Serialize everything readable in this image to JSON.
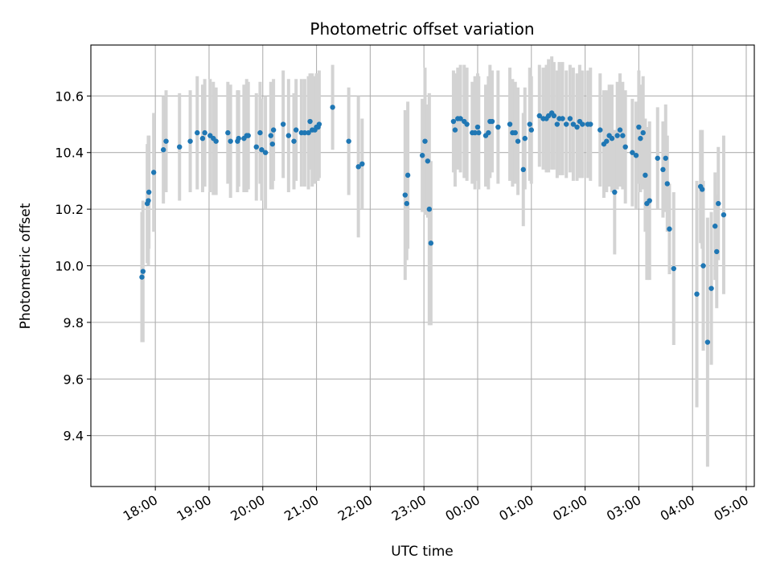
{
  "chart_data": {
    "type": "scatter",
    "title": "Photometric offset variation",
    "xlabel": "UTC time",
    "ylabel": "Photometric offset",
    "xlim_hours": [
      16.8,
      29.15
    ],
    "ylim": [
      9.22,
      10.78
    ],
    "grid": true,
    "x_tick_labels": [
      "18:00",
      "19:00",
      "20:00",
      "21:00",
      "22:00",
      "23:00",
      "00:00",
      "01:00",
      "02:00",
      "03:00",
      "04:00",
      "05:00"
    ],
    "y_tick_labels": [
      "9.4",
      "9.6",
      "9.8",
      "10.0",
      "10.2",
      "10.4",
      "10.6"
    ],
    "colors": {
      "point": "#1f77b4",
      "errorbar": "#d3d3d3",
      "grid": "#b0b0b0"
    },
    "series": [
      {
        "name": "offset",
        "points": [
          [
            17.75,
            9.96,
            0.23
          ],
          [
            17.77,
            9.98,
            0.25
          ],
          [
            17.85,
            10.22,
            0.21
          ],
          [
            17.87,
            10.23,
            0.23
          ],
          [
            17.88,
            10.26,
            0.2
          ],
          [
            17.97,
            10.33,
            0.21
          ],
          [
            18.15,
            10.41,
            0.19
          ],
          [
            18.2,
            10.44,
            0.18
          ],
          [
            18.45,
            10.42,
            0.19
          ],
          [
            18.65,
            10.44,
            0.18
          ],
          [
            18.78,
            10.47,
            0.2
          ],
          [
            18.88,
            10.45,
            0.19
          ],
          [
            18.92,
            10.47,
            0.19
          ],
          [
            19.02,
            10.46,
            0.2
          ],
          [
            19.08,
            10.45,
            0.2
          ],
          [
            19.13,
            10.44,
            0.19
          ],
          [
            19.35,
            10.47,
            0.18
          ],
          [
            19.4,
            10.44,
            0.2
          ],
          [
            19.53,
            10.44,
            0.18
          ],
          [
            19.55,
            10.45,
            0.17
          ],
          [
            19.65,
            10.45,
            0.19
          ],
          [
            19.7,
            10.46,
            0.2
          ],
          [
            19.73,
            10.46,
            0.19
          ],
          [
            19.88,
            10.42,
            0.19
          ],
          [
            19.95,
            10.47,
            0.18
          ],
          [
            19.98,
            10.41,
            0.18
          ],
          [
            20.05,
            10.4,
            0.2
          ],
          [
            20.15,
            10.46,
            0.19
          ],
          [
            20.18,
            10.43,
            0.16
          ],
          [
            20.2,
            10.48,
            0.18
          ],
          [
            20.38,
            10.5,
            0.19
          ],
          [
            20.48,
            10.46,
            0.2
          ],
          [
            20.58,
            10.44,
            0.17
          ],
          [
            20.62,
            10.48,
            0.18
          ],
          [
            20.72,
            10.47,
            0.19
          ],
          [
            20.78,
            10.47,
            0.19
          ],
          [
            20.85,
            10.47,
            0.2
          ],
          [
            20.88,
            10.51,
            0.17
          ],
          [
            20.92,
            10.48,
            0.2
          ],
          [
            20.97,
            10.48,
            0.19
          ],
          [
            21.0,
            10.49,
            0.19
          ],
          [
            21.03,
            10.49,
            0.19
          ],
          [
            21.05,
            10.5,
            0.19
          ],
          [
            21.3,
            10.56,
            0.15
          ],
          [
            21.6,
            10.44,
            0.19
          ],
          [
            21.78,
            10.35,
            0.25
          ],
          [
            21.85,
            10.36,
            0.16
          ],
          [
            22.65,
            10.25,
            0.3
          ],
          [
            22.68,
            10.22,
            0.2
          ],
          [
            22.7,
            10.32,
            0.26
          ],
          [
            22.97,
            10.39,
            0.2
          ],
          [
            23.02,
            10.44,
            0.26
          ],
          [
            23.07,
            10.37,
            0.2
          ],
          [
            23.1,
            10.2,
            0.41
          ],
          [
            23.13,
            10.08,
            0.29
          ],
          [
            23.55,
            10.51,
            0.18
          ],
          [
            23.58,
            10.48,
            0.2
          ],
          [
            23.63,
            10.52,
            0.18
          ],
          [
            23.68,
            10.52,
            0.19
          ],
          [
            23.75,
            10.51,
            0.2
          ],
          [
            23.8,
            10.5,
            0.2
          ],
          [
            23.9,
            10.47,
            0.18
          ],
          [
            23.95,
            10.47,
            0.2
          ],
          [
            24.0,
            10.49,
            0.19
          ],
          [
            24.02,
            10.47,
            0.2
          ],
          [
            24.15,
            10.46,
            0.18
          ],
          [
            24.2,
            10.47,
            0.2
          ],
          [
            24.23,
            10.51,
            0.2
          ],
          [
            24.27,
            10.51,
            0.18
          ],
          [
            24.38,
            10.49,
            0.2
          ],
          [
            24.6,
            10.5,
            0.2
          ],
          [
            24.65,
            10.47,
            0.19
          ],
          [
            24.7,
            10.47,
            0.18
          ],
          [
            24.75,
            10.44,
            0.19
          ],
          [
            24.85,
            10.34,
            0.2
          ],
          [
            24.88,
            10.45,
            0.18
          ],
          [
            24.97,
            10.5,
            0.2
          ],
          [
            25.0,
            10.48,
            0.19
          ],
          [
            25.15,
            10.53,
            0.18
          ],
          [
            25.22,
            10.52,
            0.18
          ],
          [
            25.28,
            10.52,
            0.19
          ],
          [
            25.32,
            10.53,
            0.2
          ],
          [
            25.38,
            10.54,
            0.2
          ],
          [
            25.42,
            10.53,
            0.19
          ],
          [
            25.48,
            10.5,
            0.19
          ],
          [
            25.52,
            10.52,
            0.2
          ],
          [
            25.58,
            10.52,
            0.2
          ],
          [
            25.65,
            10.5,
            0.19
          ],
          [
            25.72,
            10.52,
            0.19
          ],
          [
            25.78,
            10.5,
            0.2
          ],
          [
            25.85,
            10.49,
            0.19
          ],
          [
            25.9,
            10.51,
            0.2
          ],
          [
            25.95,
            10.5,
            0.19
          ],
          [
            26.05,
            10.5,
            0.19
          ],
          [
            26.1,
            10.5,
            0.2
          ],
          [
            26.28,
            10.48,
            0.2
          ],
          [
            26.35,
            10.43,
            0.19
          ],
          [
            26.4,
            10.44,
            0.18
          ],
          [
            26.45,
            10.46,
            0.18
          ],
          [
            26.5,
            10.45,
            0.19
          ],
          [
            26.55,
            10.26,
            0.22
          ],
          [
            26.6,
            10.46,
            0.19
          ],
          [
            26.65,
            10.48,
            0.2
          ],
          [
            26.7,
            10.46,
            0.19
          ],
          [
            26.75,
            10.42,
            0.2
          ],
          [
            26.88,
            10.4,
            0.19
          ],
          [
            26.95,
            10.39,
            0.19
          ],
          [
            27.0,
            10.49,
            0.2
          ],
          [
            27.03,
            10.45,
            0.19
          ],
          [
            27.08,
            10.47,
            0.2
          ],
          [
            27.12,
            10.32,
            0.2
          ],
          [
            27.15,
            10.22,
            0.27
          ],
          [
            27.2,
            10.23,
            0.28
          ],
          [
            27.35,
            10.38,
            0.18
          ],
          [
            27.45,
            10.34,
            0.17
          ],
          [
            27.5,
            10.38,
            0.19
          ],
          [
            27.53,
            10.29,
            0.17
          ],
          [
            27.57,
            10.13,
            0.16
          ],
          [
            27.65,
            9.99,
            0.27
          ],
          [
            28.08,
            9.9,
            0.4
          ],
          [
            28.15,
            10.28,
            0.2
          ],
          [
            28.18,
            10.27,
            0.21
          ],
          [
            28.2,
            10.0,
            0.3
          ],
          [
            28.28,
            9.73,
            0.44
          ],
          [
            28.35,
            9.92,
            0.27
          ],
          [
            28.42,
            10.14,
            0.19
          ],
          [
            28.45,
            10.05,
            0.2
          ],
          [
            28.48,
            10.22,
            0.2
          ],
          [
            28.58,
            10.18,
            0.28
          ]
        ]
      }
    ]
  }
}
